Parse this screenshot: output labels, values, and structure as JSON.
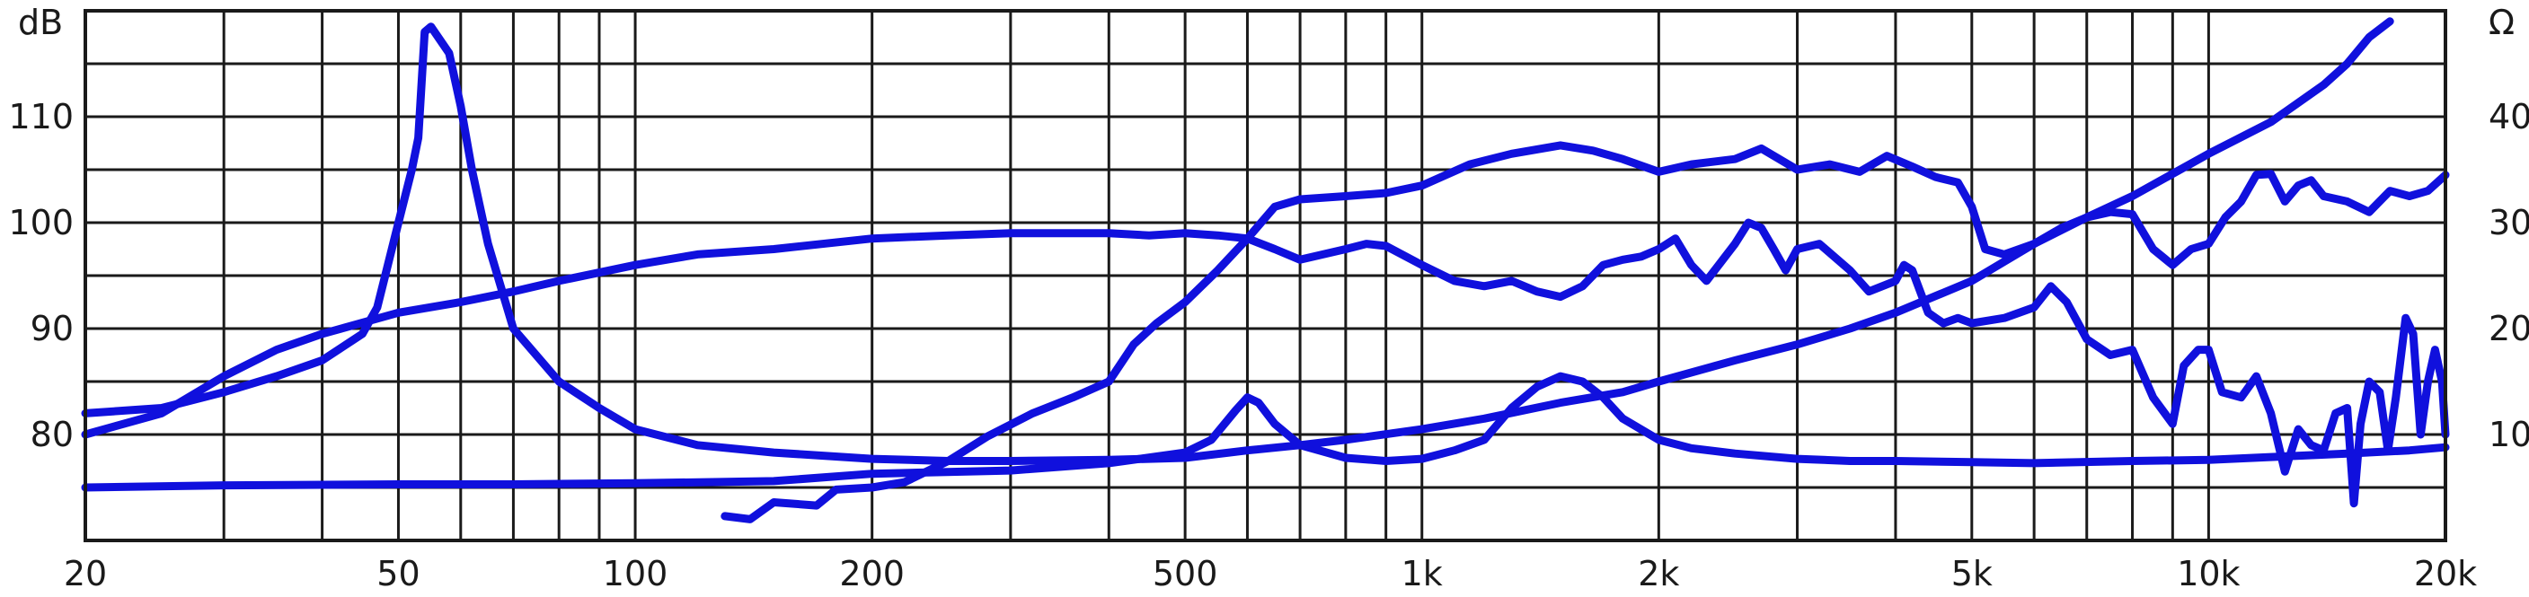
{
  "chart_data": {
    "type": "line",
    "title": "",
    "xscale": "log",
    "xlim": [
      20,
      20000
    ],
    "ylim_left": [
      70,
      120
    ],
    "ylim_right": [
      0,
      50
    ],
    "ylabel_left": "dB",
    "ylabel_right": "Ω",
    "x_tick_labels": [
      {
        "value": 20,
        "label": "20"
      },
      {
        "value": 50,
        "label": "50"
      },
      {
        "value": 100,
        "label": "100"
      },
      {
        "value": 200,
        "label": "200"
      },
      {
        "value": 500,
        "label": "500"
      },
      {
        "value": 1000,
        "label": "1k"
      },
      {
        "value": 2000,
        "label": "2k"
      },
      {
        "value": 5000,
        "label": "5k"
      },
      {
        "value": 10000,
        "label": "10k"
      },
      {
        "value": 20000,
        "label": "20k"
      }
    ],
    "y_left_ticks": [
      {
        "value": 80,
        "label": "80"
      },
      {
        "value": 90,
        "label": "90"
      },
      {
        "value": 100,
        "label": "100"
      },
      {
        "value": 110,
        "label": "110"
      }
    ],
    "y_right_ticks": [
      {
        "value": 10,
        "label": "10"
      },
      {
        "value": 20,
        "label": "20"
      },
      {
        "value": 30,
        "label": "30"
      },
      {
        "value": 40,
        "label": "40"
      }
    ],
    "grid": true,
    "line_color": "#1010dd",
    "series": [
      {
        "axis": "left",
        "points": [
          [
            130,
            72.3
          ],
          [
            140,
            72.0
          ],
          [
            150,
            73.6
          ],
          [
            170,
            73.3
          ],
          [
            180,
            74.8
          ],
          [
            200,
            75.0
          ],
          [
            220,
            75.5
          ],
          [
            250,
            77.5
          ],
          [
            280,
            79.8
          ],
          [
            320,
            82.0
          ],
          [
            360,
            83.5
          ],
          [
            400,
            85.0
          ],
          [
            430,
            88.5
          ],
          [
            460,
            90.5
          ],
          [
            500,
            92.5
          ],
          [
            550,
            95.5
          ],
          [
            600,
            98.5
          ],
          [
            650,
            101.5
          ],
          [
            700,
            102.2
          ],
          [
            800,
            102.5
          ],
          [
            900,
            102.8
          ],
          [
            1000,
            103.5
          ],
          [
            1150,
            105.5
          ],
          [
            1300,
            106.5
          ],
          [
            1500,
            107.3
          ],
          [
            1650,
            106.8
          ],
          [
            1800,
            106.0
          ],
          [
            2000,
            104.8
          ],
          [
            2200,
            105.5
          ],
          [
            2500,
            106.0
          ],
          [
            2700,
            107.0
          ],
          [
            3000,
            105.0
          ],
          [
            3300,
            105.5
          ],
          [
            3600,
            104.8
          ],
          [
            3900,
            106.3
          ],
          [
            4200,
            105.3
          ],
          [
            4500,
            104.3
          ],
          [
            4800,
            103.8
          ],
          [
            5000,
            101.5
          ],
          [
            5200,
            97.5
          ],
          [
            5500,
            97.0
          ],
          [
            6000,
            98.0
          ],
          [
            6500,
            99.5
          ],
          [
            7000,
            100.5
          ],
          [
            7500,
            101.0
          ],
          [
            8000,
            100.8
          ],
          [
            8500,
            97.5
          ],
          [
            9000,
            96.0
          ],
          [
            9500,
            97.5
          ],
          [
            10000,
            98.0
          ],
          [
            10500,
            100.5
          ],
          [
            11000,
            102.0
          ],
          [
            11500,
            104.5
          ],
          [
            12000,
            104.6
          ],
          [
            12500,
            102.0
          ],
          [
            13000,
            103.5
          ],
          [
            13500,
            104.0
          ],
          [
            14000,
            102.5
          ],
          [
            15000,
            102.0
          ],
          [
            16000,
            101.0
          ],
          [
            17000,
            103.0
          ],
          [
            18000,
            102.5
          ],
          [
            19000,
            103.0
          ],
          [
            20000,
            104.5
          ]
        ]
      },
      {
        "axis": "left",
        "points": [
          [
            20,
            80.0
          ],
          [
            25,
            82.0
          ],
          [
            30,
            85.5
          ],
          [
            35,
            88.0
          ],
          [
            40,
            89.5
          ],
          [
            50,
            91.5
          ],
          [
            60,
            92.5
          ],
          [
            70,
            93.5
          ],
          [
            80,
            94.5
          ],
          [
            100,
            96.0
          ],
          [
            120,
            97.0
          ],
          [
            150,
            97.5
          ],
          [
            200,
            98.5
          ],
          [
            250,
            98.8
          ],
          [
            300,
            99.0
          ],
          [
            350,
            99.0
          ],
          [
            400,
            99.0
          ],
          [
            450,
            98.8
          ],
          [
            500,
            99.0
          ],
          [
            550,
            98.8
          ],
          [
            600,
            98.5
          ],
          [
            650,
            97.5
          ],
          [
            700,
            96.5
          ],
          [
            800,
            97.5
          ],
          [
            850,
            98.0
          ],
          [
            900,
            97.8
          ],
          [
            1000,
            96.0
          ],
          [
            1100,
            94.5
          ],
          [
            1200,
            94.0
          ],
          [
            1300,
            94.5
          ],
          [
            1400,
            93.5
          ],
          [
            1500,
            93.0
          ],
          [
            1600,
            94.0
          ],
          [
            1700,
            96.0
          ],
          [
            1800,
            96.5
          ],
          [
            1900,
            96.8
          ],
          [
            2000,
            97.5
          ],
          [
            2100,
            98.5
          ],
          [
            2200,
            96.0
          ],
          [
            2300,
            94.5
          ],
          [
            2500,
            98.0
          ],
          [
            2600,
            100.0
          ],
          [
            2700,
            99.5
          ],
          [
            2800,
            97.5
          ],
          [
            2900,
            95.5
          ],
          [
            3000,
            97.5
          ],
          [
            3200,
            98.0
          ],
          [
            3500,
            95.5
          ],
          [
            3700,
            93.5
          ],
          [
            4000,
            94.5
          ],
          [
            4100,
            96.0
          ],
          [
            4200,
            95.5
          ],
          [
            4400,
            91.5
          ],
          [
            4600,
            90.5
          ],
          [
            4800,
            91.0
          ],
          [
            5000,
            90.5
          ],
          [
            5500,
            91.0
          ],
          [
            6000,
            92.0
          ],
          [
            6300,
            94.0
          ],
          [
            6600,
            92.5
          ],
          [
            7000,
            89.0
          ],
          [
            7500,
            87.5
          ],
          [
            8000,
            88.0
          ],
          [
            8500,
            83.5
          ],
          [
            9000,
            81.0
          ],
          [
            9300,
            86.5
          ],
          [
            9700,
            88.0
          ],
          [
            10000,
            88.0
          ],
          [
            10400,
            84.0
          ],
          [
            11000,
            83.5
          ],
          [
            11500,
            85.5
          ],
          [
            12000,
            82.0
          ],
          [
            12500,
            76.5
          ],
          [
            13000,
            80.5
          ],
          [
            13500,
            79.0
          ],
          [
            14000,
            78.5
          ],
          [
            14500,
            82.0
          ],
          [
            15000,
            82.5
          ],
          [
            15300,
            73.5
          ],
          [
            15600,
            81.0
          ],
          [
            16000,
            85.0
          ],
          [
            16500,
            84.0
          ],
          [
            16900,
            78.5
          ],
          [
            17300,
            83.5
          ],
          [
            17800,
            91.0
          ],
          [
            18200,
            89.5
          ],
          [
            18600,
            80.0
          ],
          [
            19000,
            85.0
          ],
          [
            19400,
            88.0
          ],
          [
            19800,
            85.0
          ],
          [
            20000,
            80.0
          ]
        ]
      },
      {
        "axis": "right",
        "points": [
          [
            20,
            5.0
          ],
          [
            30,
            5.2
          ],
          [
            50,
            5.3
          ],
          [
            70,
            5.3
          ],
          [
            100,
            5.4
          ],
          [
            150,
            5.6
          ],
          [
            200,
            6.3
          ],
          [
            300,
            6.6
          ],
          [
            400,
            7.3
          ],
          [
            500,
            8.3
          ],
          [
            540,
            9.5
          ],
          [
            580,
            12.3
          ],
          [
            600,
            13.5
          ],
          [
            620,
            13.0
          ],
          [
            650,
            11.0
          ],
          [
            700,
            9.0
          ],
          [
            800,
            7.8
          ],
          [
            900,
            7.5
          ],
          [
            1000,
            7.7
          ],
          [
            1100,
            8.5
          ],
          [
            1200,
            9.5
          ],
          [
            1300,
            12.5
          ],
          [
            1400,
            14.5
          ],
          [
            1500,
            15.5
          ],
          [
            1600,
            15.0
          ],
          [
            1700,
            13.5
          ],
          [
            1800,
            11.5
          ],
          [
            2000,
            9.5
          ],
          [
            2200,
            8.7
          ],
          [
            2500,
            8.2
          ],
          [
            3000,
            7.7
          ],
          [
            3500,
            7.5
          ],
          [
            4000,
            7.5
          ],
          [
            5000,
            7.4
          ],
          [
            6000,
            7.3
          ],
          [
            8000,
            7.5
          ],
          [
            10000,
            7.6
          ],
          [
            15000,
            8.2
          ],
          [
            18000,
            8.5
          ],
          [
            20000,
            8.8
          ]
        ]
      },
      {
        "axis": "right",
        "points": [
          [
            20,
            12.0
          ],
          [
            25,
            12.5
          ],
          [
            30,
            14.0
          ],
          [
            35,
            15.5
          ],
          [
            40,
            17.0
          ],
          [
            45,
            19.5
          ],
          [
            47,
            22.0
          ],
          [
            50,
            30.0
          ],
          [
            52,
            35.0
          ],
          [
            53,
            38.0
          ],
          [
            54,
            48.0
          ],
          [
            55,
            48.5
          ],
          [
            58,
            46.0
          ],
          [
            60,
            41.0
          ],
          [
            62,
            35.0
          ],
          [
            65,
            28.0
          ],
          [
            70,
            20.0
          ],
          [
            80,
            15.0
          ],
          [
            90,
            12.5
          ],
          [
            100,
            10.5
          ],
          [
            120,
            9.0
          ],
          [
            150,
            8.3
          ],
          [
            200,
            7.7
          ],
          [
            250,
            7.5
          ],
          [
            300,
            7.5
          ],
          [
            400,
            7.6
          ],
          [
            500,
            7.8
          ],
          [
            600,
            8.5
          ],
          [
            700,
            9.0
          ],
          [
            800,
            9.5
          ],
          [
            1000,
            10.5
          ],
          [
            1200,
            11.5
          ],
          [
            1500,
            13.0
          ],
          [
            1800,
            14.0
          ],
          [
            2000,
            15.0
          ],
          [
            2500,
            17.0
          ],
          [
            3000,
            18.5
          ],
          [
            3500,
            20.0
          ],
          [
            4000,
            21.5
          ],
          [
            5000,
            24.5
          ],
          [
            6000,
            28.0
          ],
          [
            7000,
            30.5
          ],
          [
            8000,
            32.5
          ],
          [
            10000,
            36.5
          ],
          [
            12000,
            39.5
          ],
          [
            14000,
            43.0
          ],
          [
            15000,
            45.0
          ],
          [
            16000,
            47.5
          ],
          [
            17000,
            49.0
          ]
        ]
      }
    ]
  }
}
